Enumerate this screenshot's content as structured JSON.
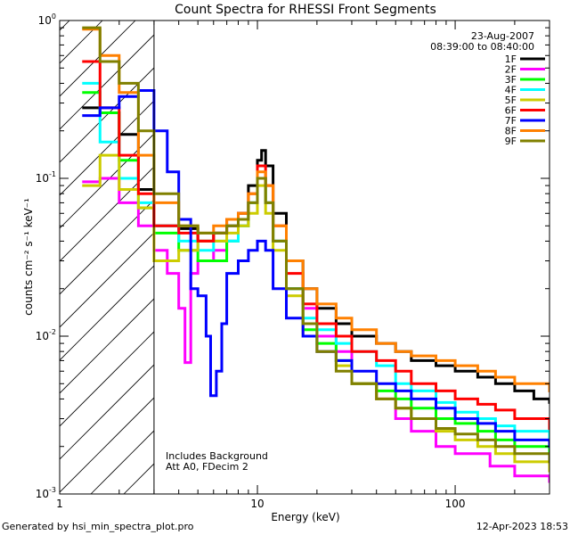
{
  "chart_data": {
    "type": "line",
    "title": "Count Spectra for RHESSI Front Segments",
    "xlabel": "Energy (keV)",
    "ylabel": "counts cm⁻² s⁻¹ keV⁻¹",
    "xscale": "log",
    "yscale": "log",
    "xlim": [
      1,
      300
    ],
    "ylim": [
      0.001,
      1
    ],
    "x_tick_labels": [
      {
        "value": 1,
        "label": "1"
      },
      {
        "value": 10,
        "label": "10"
      },
      {
        "value": 100,
        "label": "100"
      }
    ],
    "y_tick_labels": [
      {
        "value": 1,
        "base": "10",
        "exp": "0"
      },
      {
        "value": 0.1,
        "base": "10",
        "exp": "-1"
      },
      {
        "value": 0.01,
        "base": "10",
        "exp": "-2"
      },
      {
        "value": 0.001,
        "base": "10",
        "exp": "-3"
      }
    ],
    "attenuator_cutoff_keV": 3,
    "legend": {
      "date": "23-Aug-2007",
      "time_range": "08:39:00 to 08:40:00",
      "position": "top-right"
    },
    "annotations": [
      "Includes Background",
      "Att A0, FDecim 2"
    ],
    "series": [
      {
        "name": "1F",
        "color": "#000000",
        "values": [
          [
            1.3,
            0.28
          ],
          [
            1.6,
            0.26
          ],
          [
            2.0,
            0.19
          ],
          [
            2.5,
            0.085
          ],
          [
            3,
            0.05
          ],
          [
            4,
            0.048
          ],
          [
            5,
            0.04
          ],
          [
            6,
            0.045
          ],
          [
            7,
            0.05
          ],
          [
            8,
            0.06
          ],
          [
            9,
            0.09
          ],
          [
            10,
            0.13
          ],
          [
            10.5,
            0.15
          ],
          [
            11,
            0.12
          ],
          [
            12,
            0.06
          ],
          [
            14,
            0.03
          ],
          [
            17,
            0.02
          ],
          [
            20,
            0.015
          ],
          [
            25,
            0.012
          ],
          [
            30,
            0.01
          ],
          [
            40,
            0.009
          ],
          [
            50,
            0.008
          ],
          [
            60,
            0.007
          ],
          [
            80,
            0.0065
          ],
          [
            100,
            0.006
          ],
          [
            130,
            0.0055
          ],
          [
            160,
            0.005
          ],
          [
            200,
            0.0045
          ],
          [
            250,
            0.004
          ],
          [
            300,
            0.0038
          ]
        ]
      },
      {
        "name": "2F",
        "color": "#ff00ff",
        "values": [
          [
            1.3,
            0.095
          ],
          [
            1.6,
            0.1
          ],
          [
            2.0,
            0.07
          ],
          [
            2.5,
            0.05
          ],
          [
            3,
            0.035
          ],
          [
            3.5,
            0.025
          ],
          [
            4,
            0.015
          ],
          [
            4.3,
            0.0068
          ],
          [
            4.6,
            0.025
          ],
          [
            5,
            0.03
          ],
          [
            6,
            0.035
          ],
          [
            7,
            0.04
          ],
          [
            8,
            0.05
          ],
          [
            9,
            0.07
          ],
          [
            10,
            0.1
          ],
          [
            11,
            0.07
          ],
          [
            12,
            0.04
          ],
          [
            14,
            0.02
          ],
          [
            17,
            0.015
          ],
          [
            20,
            0.01
          ],
          [
            25,
            0.008
          ],
          [
            30,
            0.005
          ],
          [
            40,
            0.004
          ],
          [
            50,
            0.003
          ],
          [
            60,
            0.0025
          ],
          [
            80,
            0.002
          ],
          [
            100,
            0.0018
          ],
          [
            150,
            0.0015
          ],
          [
            200,
            0.0013
          ],
          [
            300,
            0.0012
          ]
        ]
      },
      {
        "name": "3F",
        "color": "#00ff00",
        "values": [
          [
            1.3,
            0.35
          ],
          [
            1.6,
            0.26
          ],
          [
            2.0,
            0.13
          ],
          [
            2.5,
            0.065
          ],
          [
            3,
            0.045
          ],
          [
            4,
            0.035
          ],
          [
            5,
            0.03
          ],
          [
            6,
            0.03
          ],
          [
            7,
            0.04
          ],
          [
            8,
            0.05
          ],
          [
            9,
            0.07
          ],
          [
            10,
            0.1
          ],
          [
            11,
            0.07
          ],
          [
            12,
            0.04
          ],
          [
            14,
            0.02
          ],
          [
            17,
            0.011
          ],
          [
            20,
            0.009
          ],
          [
            25,
            0.007
          ],
          [
            30,
            0.005
          ],
          [
            40,
            0.0045
          ],
          [
            50,
            0.004
          ],
          [
            60,
            0.0035
          ],
          [
            80,
            0.003
          ],
          [
            100,
            0.0028
          ],
          [
            130,
            0.0025
          ],
          [
            160,
            0.0022
          ],
          [
            200,
            0.002
          ],
          [
            300,
            0.0018
          ]
        ]
      },
      {
        "name": "4F",
        "color": "#00ffff",
        "values": [
          [
            1.3,
            0.4
          ],
          [
            1.6,
            0.17
          ],
          [
            2.0,
            0.1
          ],
          [
            2.5,
            0.07
          ],
          [
            3,
            0.05
          ],
          [
            4,
            0.04
          ],
          [
            5,
            0.035
          ],
          [
            6,
            0.04
          ],
          [
            7,
            0.04
          ],
          [
            8,
            0.05
          ],
          [
            9,
            0.07
          ],
          [
            10,
            0.1
          ],
          [
            11,
            0.07
          ],
          [
            12,
            0.04
          ],
          [
            14,
            0.02
          ],
          [
            17,
            0.013
          ],
          [
            20,
            0.011
          ],
          [
            25,
            0.009
          ],
          [
            30,
            0.008
          ],
          [
            40,
            0.0065
          ],
          [
            50,
            0.005
          ],
          [
            60,
            0.0045
          ],
          [
            80,
            0.0038
          ],
          [
            100,
            0.0033
          ],
          [
            130,
            0.003
          ],
          [
            160,
            0.0027
          ],
          [
            200,
            0.0025
          ],
          [
            300,
            0.002
          ]
        ]
      },
      {
        "name": "5F",
        "color": "#cccc00",
        "values": [
          [
            1.3,
            0.09
          ],
          [
            1.6,
            0.14
          ],
          [
            2.0,
            0.085
          ],
          [
            2.5,
            0.065
          ],
          [
            3,
            0.03
          ],
          [
            4,
            0.035
          ],
          [
            5,
            0.04
          ],
          [
            6,
            0.04
          ],
          [
            7,
            0.045
          ],
          [
            8,
            0.05
          ],
          [
            9,
            0.06
          ],
          [
            10,
            0.09
          ],
          [
            11,
            0.06
          ],
          [
            12,
            0.035
          ],
          [
            14,
            0.018
          ],
          [
            17,
            0.01
          ],
          [
            20,
            0.008
          ],
          [
            25,
            0.0065
          ],
          [
            30,
            0.005
          ],
          [
            40,
            0.004
          ],
          [
            50,
            0.0035
          ],
          [
            60,
            0.003
          ],
          [
            80,
            0.0025
          ],
          [
            100,
            0.0022
          ],
          [
            130,
            0.002
          ],
          [
            160,
            0.0018
          ],
          [
            200,
            0.0016
          ],
          [
            300,
            0.0014
          ]
        ]
      },
      {
        "name": "6F",
        "color": "#ff0000",
        "values": [
          [
            1.3,
            0.55
          ],
          [
            1.6,
            0.28
          ],
          [
            2.0,
            0.14
          ],
          [
            2.5,
            0.08
          ],
          [
            3,
            0.05
          ],
          [
            4,
            0.045
          ],
          [
            5,
            0.04
          ],
          [
            6,
            0.045
          ],
          [
            7,
            0.055
          ],
          [
            8,
            0.06
          ],
          [
            9,
            0.08
          ],
          [
            10,
            0.12
          ],
          [
            11,
            0.09
          ],
          [
            12,
            0.05
          ],
          [
            14,
            0.025
          ],
          [
            17,
            0.016
          ],
          [
            20,
            0.012
          ],
          [
            25,
            0.01
          ],
          [
            30,
            0.008
          ],
          [
            40,
            0.007
          ],
          [
            50,
            0.006
          ],
          [
            60,
            0.005
          ],
          [
            80,
            0.0045
          ],
          [
            100,
            0.004
          ],
          [
            130,
            0.0037
          ],
          [
            160,
            0.0034
          ],
          [
            200,
            0.003
          ],
          [
            300,
            0.0026
          ]
        ]
      },
      {
        "name": "7F",
        "color": "#0000ff",
        "values": [
          [
            1.3,
            0.25
          ],
          [
            1.6,
            0.28
          ],
          [
            2.0,
            0.33
          ],
          [
            2.5,
            0.36
          ],
          [
            3,
            0.2
          ],
          [
            3.5,
            0.11
          ],
          [
            4,
            0.055
          ],
          [
            4.6,
            0.02
          ],
          [
            5,
            0.018
          ],
          [
            5.5,
            0.01
          ],
          [
            5.8,
            0.0042
          ],
          [
            6.2,
            0.006
          ],
          [
            6.6,
            0.012
          ],
          [
            7,
            0.025
          ],
          [
            8,
            0.03
          ],
          [
            9,
            0.035
          ],
          [
            10,
            0.04
          ],
          [
            11,
            0.035
          ],
          [
            12,
            0.02
          ],
          [
            14,
            0.013
          ],
          [
            17,
            0.01
          ],
          [
            20,
            0.008
          ],
          [
            25,
            0.007
          ],
          [
            30,
            0.006
          ],
          [
            40,
            0.005
          ],
          [
            50,
            0.0045
          ],
          [
            60,
            0.004
          ],
          [
            80,
            0.0035
          ],
          [
            100,
            0.003
          ],
          [
            130,
            0.0028
          ],
          [
            160,
            0.0025
          ],
          [
            200,
            0.0022
          ],
          [
            300,
            0.002
          ]
        ]
      },
      {
        "name": "8F",
        "color": "#ff8000",
        "values": [
          [
            1.3,
            0.88
          ],
          [
            1.6,
            0.6
          ],
          [
            2.0,
            0.35
          ],
          [
            2.5,
            0.14
          ],
          [
            3,
            0.07
          ],
          [
            4,
            0.05
          ],
          [
            5,
            0.045
          ],
          [
            6,
            0.05
          ],
          [
            7,
            0.055
          ],
          [
            8,
            0.06
          ],
          [
            9,
            0.08
          ],
          [
            10,
            0.11
          ],
          [
            11,
            0.09
          ],
          [
            12,
            0.05
          ],
          [
            14,
            0.03
          ],
          [
            17,
            0.02
          ],
          [
            20,
            0.016
          ],
          [
            25,
            0.013
          ],
          [
            30,
            0.011
          ],
          [
            40,
            0.009
          ],
          [
            50,
            0.008
          ],
          [
            60,
            0.0075
          ],
          [
            80,
            0.007
          ],
          [
            100,
            0.0065
          ],
          [
            130,
            0.006
          ],
          [
            160,
            0.0055
          ],
          [
            200,
            0.005
          ],
          [
            300,
            0.0045
          ]
        ]
      },
      {
        "name": "9F",
        "color": "#808000",
        "values": [
          [
            1.3,
            0.9
          ],
          [
            1.6,
            0.55
          ],
          [
            2.0,
            0.4
          ],
          [
            2.5,
            0.2
          ],
          [
            3,
            0.08
          ],
          [
            4,
            0.05
          ],
          [
            5,
            0.045
          ],
          [
            6,
            0.045
          ],
          [
            7,
            0.05
          ],
          [
            8,
            0.055
          ],
          [
            9,
            0.07
          ],
          [
            10,
            0.1
          ],
          [
            11,
            0.07
          ],
          [
            12,
            0.04
          ],
          [
            14,
            0.02
          ],
          [
            17,
            0.012
          ],
          [
            20,
            0.008
          ],
          [
            25,
            0.006
          ],
          [
            30,
            0.005
          ],
          [
            40,
            0.004
          ],
          [
            50,
            0.0035
          ],
          [
            60,
            0.003
          ],
          [
            80,
            0.0026
          ],
          [
            100,
            0.0024
          ],
          [
            130,
            0.0022
          ],
          [
            160,
            0.002
          ],
          [
            200,
            0.0018
          ],
          [
            300,
            0.0016
          ]
        ]
      }
    ]
  },
  "footer": {
    "generated_by": "Generated by hsi_min_spectra_plot.pro",
    "timestamp": "12-Apr-2023 18:53"
  }
}
